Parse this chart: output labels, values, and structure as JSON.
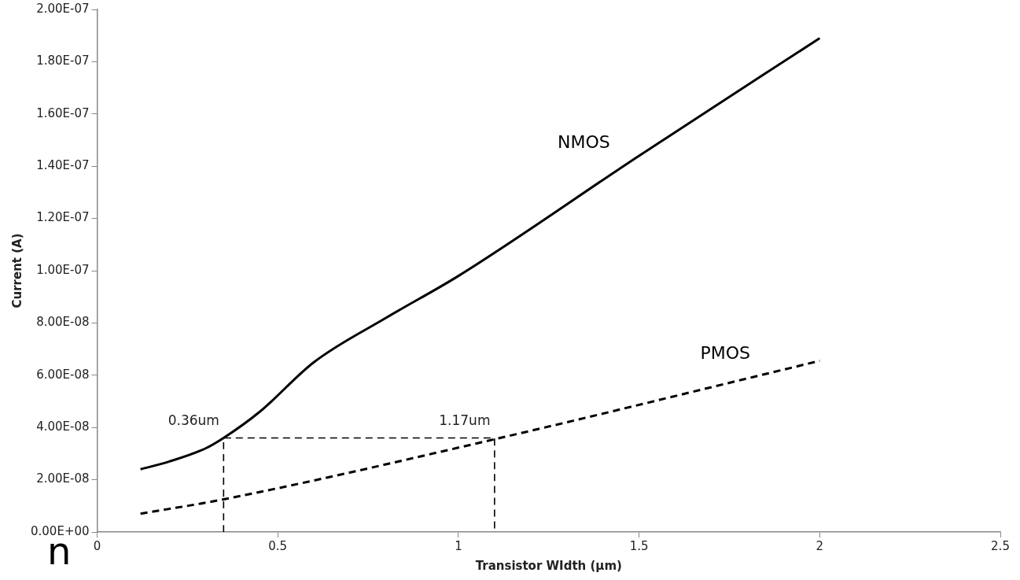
{
  "chart_data": {
    "type": "line",
    "xlabel": "Transistor WIdth (µm)",
    "ylabel": "Current (A)",
    "xlim": [
      0,
      2.5
    ],
    "xticks": [
      0,
      0.5,
      1,
      1.5,
      2,
      2.5
    ],
    "ylim": [
      0,
      2e-07
    ],
    "yticks": [
      {
        "value": 0,
        "label": "0.00E+00"
      },
      {
        "value": 2e-08,
        "label": "2.00E-08"
      },
      {
        "value": 4e-08,
        "label": "4.00E-08"
      },
      {
        "value": 6e-08,
        "label": "6.00E-08"
      },
      {
        "value": 8e-08,
        "label": "8.00E-08"
      },
      {
        "value": 1e-07,
        "label": "1.00E-07"
      },
      {
        "value": 1.2e-07,
        "label": "1.20E-07"
      },
      {
        "value": 1.4e-07,
        "label": "1.40E-07"
      },
      {
        "value": 1.6e-07,
        "label": "1.60E-07"
      },
      {
        "value": 1.8e-07,
        "label": "1.80E-07"
      },
      {
        "value": 2e-07,
        "label": "2.00E-07"
      }
    ],
    "grid": false,
    "legend": false,
    "marker": "none",
    "series": [
      {
        "name": "NMOS",
        "color": "#000000",
        "line_style": "solid",
        "x": [
          0.12,
          0.2,
          0.3,
          0.35,
          0.45,
          0.6,
          0.8,
          1.0,
          1.5,
          2.0
        ],
        "values": [
          2.4e-08,
          2.7e-08,
          3.2e-08,
          3.6e-08,
          4.6e-08,
          6.5e-08,
          8.2e-08,
          9.8e-08,
          1.44e-07,
          1.89e-07
        ]
      },
      {
        "name": "PMOS",
        "color": "#000000",
        "line_style": "dashed",
        "x": [
          0.12,
          0.35,
          1.1,
          2.0
        ],
        "values": [
          7e-09,
          1.25e-08,
          3.55e-08,
          6.55e-08
        ]
      },
      {
        "color": "#000000",
        "line_style": "dashed",
        "x": [
          0.35,
          0.35,
          1.1,
          1.1
        ],
        "values": [
          0,
          3.6e-08,
          3.6e-08,
          0
        ]
      }
    ],
    "annotations": [
      {
        "text": "0.36um",
        "x": 0.35,
        "y": 3.6e-08
      },
      {
        "text": "1.17um",
        "x": 1.1,
        "y": 3.6e-08
      },
      "n"
    ]
  }
}
